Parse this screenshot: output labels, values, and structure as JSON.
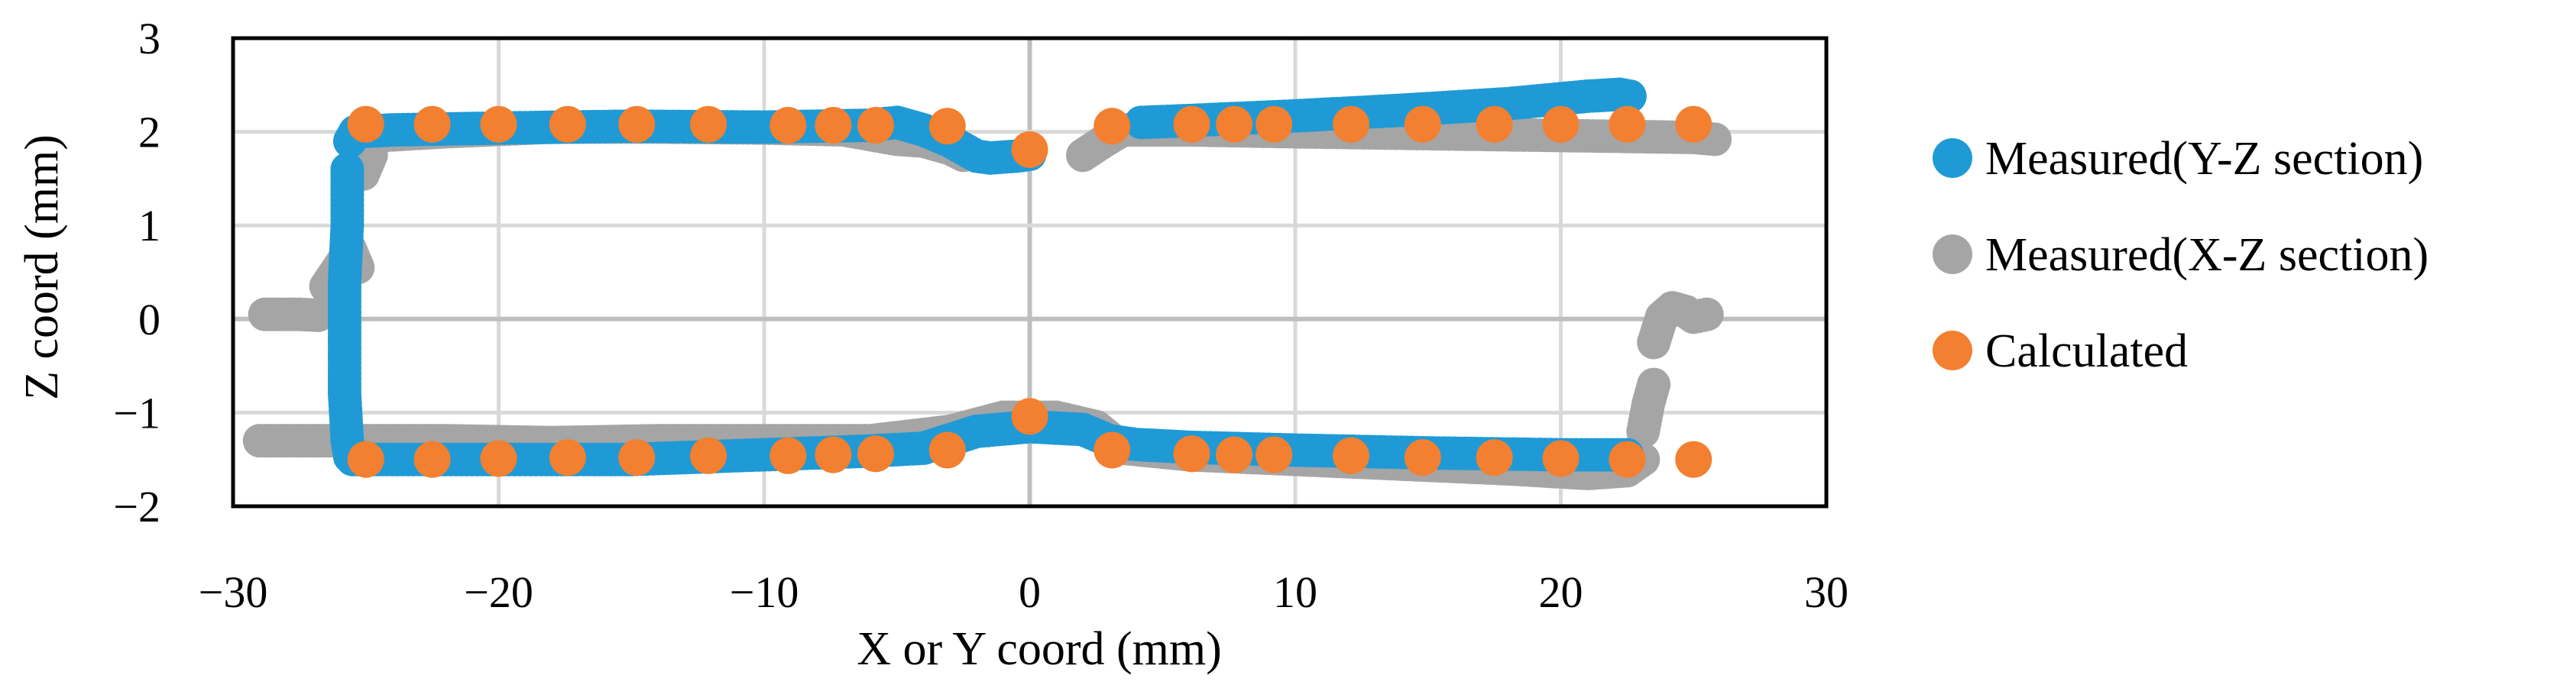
{
  "chart_data": {
    "type": "scatter",
    "title": "",
    "xlabel": "X or Y coord (mm)",
    "ylabel": "Z coord (mm)",
    "xlim": [
      -30,
      30
    ],
    "ylim": [
      -2,
      3
    ],
    "x_ticks": [
      -30,
      -20,
      -10,
      0,
      10,
      20,
      30
    ],
    "y_ticks": [
      -2,
      -1,
      0,
      1,
      2,
      3
    ],
    "x_tick_labels": [
      "−30",
      "−20",
      "−10",
      "0",
      "10",
      "20",
      "30"
    ],
    "y_tick_labels": [
      "−2",
      "−1",
      "0",
      "1",
      "2",
      "3"
    ],
    "grid": true,
    "legend_position": "right",
    "colors": {
      "measured_yz": "#1f9ad6",
      "measured_xz": "#a5a5a5",
      "calculated": "#f28030"
    },
    "series": [
      {
        "name": "Measured(Y-Z section)",
        "color": "#1f9ad6",
        "segments": [
          [
            [
              -25.6,
              1.9
            ],
            [
              -25.4,
              2.0
            ],
            [
              -24,
              2.02
            ],
            [
              -20,
              2.04
            ],
            [
              -15,
              2.06
            ],
            [
              -10,
              2.05
            ],
            [
              -6,
              2.07
            ],
            [
              -5,
              2.1
            ],
            [
              -4,
              2.02
            ],
            [
              -3,
              1.9
            ],
            [
              -2,
              1.74
            ],
            [
              -1.5,
              1.72
            ],
            [
              -0.5,
              1.74
            ],
            [
              0,
              1.76
            ]
          ],
          [
            [
              -25.7,
              1.6
            ],
            [
              -25.7,
              1.0
            ],
            [
              -25.8,
              0.4
            ],
            [
              -25.8,
              -0.2
            ],
            [
              -25.8,
              -0.8
            ],
            [
              -25.7,
              -1.3
            ],
            [
              -25.6,
              -1.47
            ]
          ],
          [
            [
              -25.5,
              -1.5
            ],
            [
              -24,
              -1.5
            ],
            [
              -20,
              -1.5
            ],
            [
              -15,
              -1.5
            ],
            [
              -10,
              -1.45
            ],
            [
              -6,
              -1.41
            ],
            [
              -4,
              -1.38
            ],
            [
              -2,
              -1.2
            ],
            [
              0,
              -1.15
            ],
            [
              2,
              -1.18
            ],
            [
              3,
              -1.3
            ],
            [
              4,
              -1.34
            ],
            [
              6,
              -1.37
            ],
            [
              10,
              -1.4
            ],
            [
              15,
              -1.43
            ],
            [
              20,
              -1.45
            ],
            [
              22.5,
              -1.45
            ]
          ],
          [
            [
              4.2,
              2.1
            ],
            [
              6,
              2.12
            ],
            [
              10,
              2.17
            ],
            [
              14,
              2.23
            ],
            [
              18,
              2.3
            ],
            [
              21,
              2.38
            ],
            [
              22.2,
              2.4
            ],
            [
              22.6,
              2.38
            ]
          ]
        ]
      },
      {
        "name": "Measured(X-Z section)",
        "color": "#a5a5a5",
        "segments": [
          [
            [
              -28.8,
              0.05
            ],
            [
              -27.5,
              0.05
            ],
            [
              -26.8,
              0.04
            ]
          ],
          [
            [
              -26.5,
              0.35
            ],
            [
              -25.9,
              0.6
            ],
            [
              -25.6,
              0.75
            ],
            [
              -25.3,
              0.55
            ]
          ],
          [
            [
              -25.1,
              1.55
            ],
            [
              -24.8,
              1.75
            ]
          ],
          [
            [
              -25,
              1.95
            ],
            [
              -22,
              2.0
            ],
            [
              -18,
              2.05
            ],
            [
              -14,
              2.05
            ],
            [
              -10,
              2.04
            ],
            [
              -7,
              2.02
            ],
            [
              -5,
              1.92
            ],
            [
              -4,
              1.9
            ],
            [
              -3,
              1.82
            ],
            [
              -2.5,
              1.75
            ]
          ],
          [
            [
              2,
              1.75
            ],
            [
              2.8,
              1.9
            ],
            [
              3.5,
              2.02
            ],
            [
              6,
              2.02
            ],
            [
              10,
              2.0
            ],
            [
              15,
              1.98
            ],
            [
              20,
              1.96
            ],
            [
              25,
              1.94
            ],
            [
              25.8,
              1.92
            ]
          ],
          [
            [
              -29,
              -1.3
            ],
            [
              -26,
              -1.3
            ],
            [
              -22,
              -1.3
            ],
            [
              -18,
              -1.32
            ],
            [
              -14,
              -1.3
            ],
            [
              -10,
              -1.3
            ],
            [
              -6,
              -1.3
            ],
            [
              -3,
              -1.2
            ],
            [
              -1,
              -1.05
            ],
            [
              1,
              -1.05
            ],
            [
              2.5,
              -1.15
            ],
            [
              3.5,
              -1.38
            ],
            [
              6,
              -1.45
            ],
            [
              10,
              -1.5
            ],
            [
              14,
              -1.55
            ],
            [
              18,
              -1.6
            ],
            [
              21,
              -1.65
            ],
            [
              22.5,
              -1.62
            ],
            [
              23.1,
              -1.5
            ]
          ],
          [
            [
              23.1,
              -1.2
            ],
            [
              23.3,
              -0.9
            ],
            [
              23.5,
              -0.7
            ]
          ],
          [
            [
              23.5,
              -0.25
            ],
            [
              23.8,
              0.02
            ],
            [
              24.2,
              0.12
            ],
            [
              24.7,
              0.08
            ],
            [
              25.0,
              0.02
            ],
            [
              25.5,
              0.05
            ]
          ]
        ]
      },
      {
        "name": "Calculated",
        "color": "#f28030",
        "points": [
          [
            -25,
            2.08
          ],
          [
            -22.5,
            2.08
          ],
          [
            -20,
            2.08
          ],
          [
            -17.4,
            2.08
          ],
          [
            -14.8,
            2.08
          ],
          [
            -12.1,
            2.08
          ],
          [
            -9.1,
            2.07
          ],
          [
            -7.4,
            2.07
          ],
          [
            -5.8,
            2.07
          ],
          [
            -3.1,
            2.06
          ],
          [
            0,
            1.81
          ],
          [
            3.1,
            2.06
          ],
          [
            6.1,
            2.08
          ],
          [
            7.7,
            2.08
          ],
          [
            9.2,
            2.08
          ],
          [
            12.1,
            2.08
          ],
          [
            14.8,
            2.08
          ],
          [
            17.5,
            2.08
          ],
          [
            20,
            2.08
          ],
          [
            22.5,
            2.08
          ],
          [
            25,
            2.08
          ],
          [
            -25,
            -1.5
          ],
          [
            -22.5,
            -1.5
          ],
          [
            -20,
            -1.49
          ],
          [
            -17.4,
            -1.48
          ],
          [
            -14.8,
            -1.48
          ],
          [
            -12.1,
            -1.46
          ],
          [
            -9.1,
            -1.46
          ],
          [
            -7.4,
            -1.45
          ],
          [
            -5.8,
            -1.44
          ],
          [
            -3.1,
            -1.4
          ],
          [
            0,
            -1.04
          ],
          [
            3.1,
            -1.4
          ],
          [
            6.1,
            -1.44
          ],
          [
            7.7,
            -1.45
          ],
          [
            9.2,
            -1.45
          ],
          [
            12.1,
            -1.46
          ],
          [
            14.8,
            -1.48
          ],
          [
            17.5,
            -1.48
          ],
          [
            20,
            -1.49
          ],
          [
            22.5,
            -1.5
          ],
          [
            25,
            -1.5
          ]
        ]
      }
    ]
  }
}
